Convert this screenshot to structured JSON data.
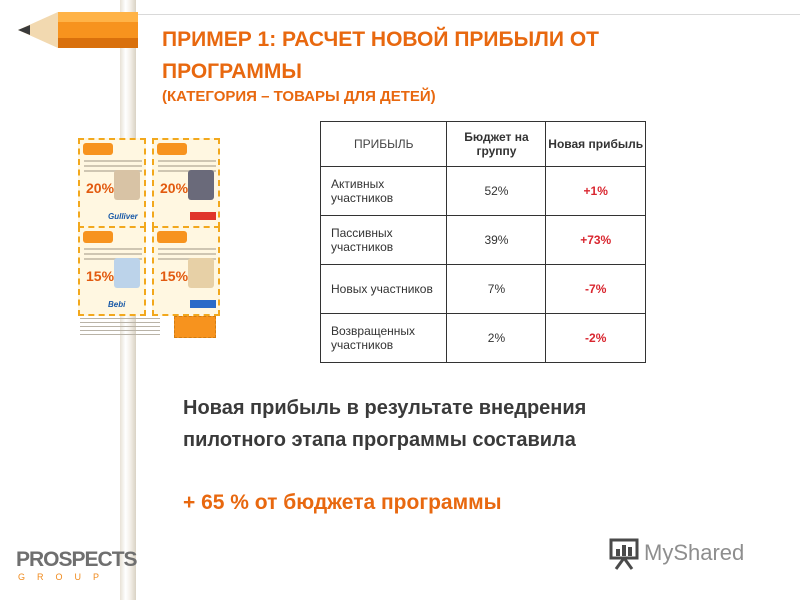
{
  "slide": {
    "title": "ПРИМЕР 1: РАСЧЕТ НОВОЙ ПРИБЫЛИ ОТ ПРОГРАММЫ",
    "subtitle": "(КАТЕГОРИЯ – ТОВАРЫ ДЛЯ ДЕТЕЙ)",
    "conclusion": "Новая прибыль в результате внедрения пилотного этапа программы составила",
    "result": "+ 65 % от бюджета программы"
  },
  "coupons": {
    "discounts": [
      "20%",
      "20%",
      "15%",
      "15%"
    ],
    "brands": [
      "Gulliver",
      "",
      "Bebi",
      ""
    ]
  },
  "table": {
    "headers": [
      "ПРИБЫЛЬ",
      "Бюджет на группу",
      "Новая прибыль"
    ],
    "rows": [
      {
        "name": "Активных участников",
        "budget": "52%",
        "profit": "+1%"
      },
      {
        "name": "Пассивных участников",
        "budget": "39%",
        "profit": "+73%"
      },
      {
        "name": "Новых участников",
        "budget": "7%",
        "profit": "-7%"
      },
      {
        "name": "Возвращенных участников",
        "budget": "2%",
        "profit": "-2%"
      }
    ]
  },
  "logos": {
    "prospects_word": "PROSPECTS",
    "prospects_sub": "GROUP",
    "myshared": "MyShared"
  },
  "colors": {
    "accent": "#e8680f",
    "profit_red": "#d9262f"
  }
}
